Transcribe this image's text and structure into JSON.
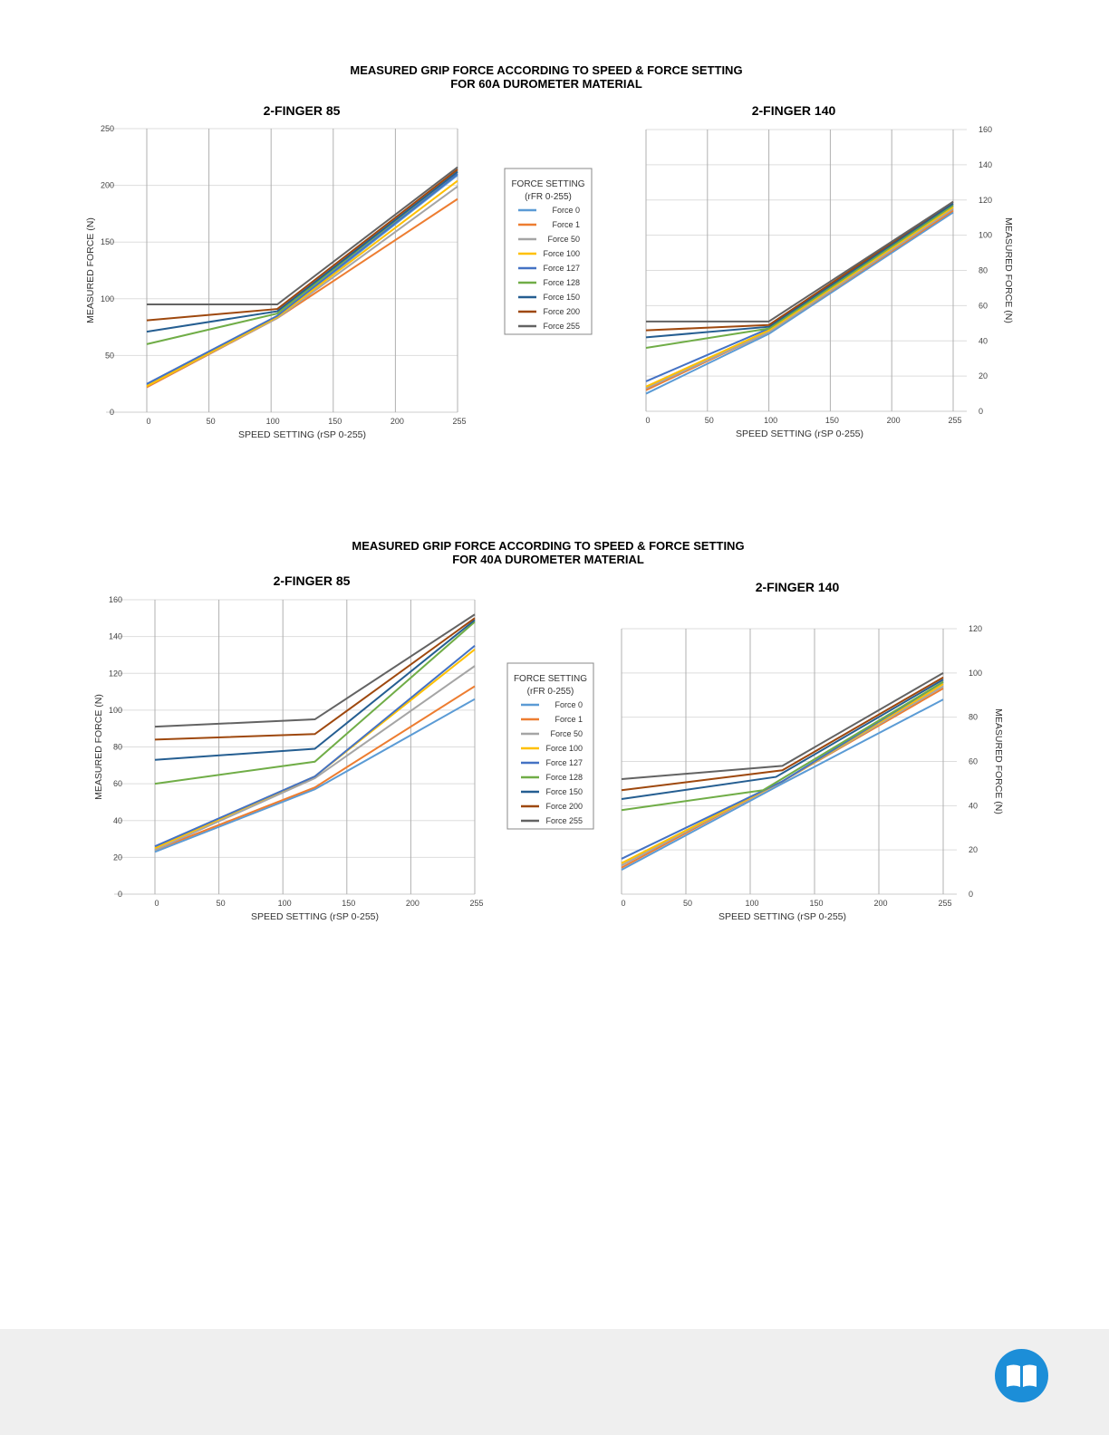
{
  "series_colors": {
    "Force 0": "#5b9bd5",
    "Force 1": "#ed7d31",
    "Force 50": "#a5a5a5",
    "Force 100": "#ffc000",
    "Force 127": "#4472c4",
    "Force 128": "#70ad47",
    "Force 150": "#255e91",
    "Force 200": "#9e480e",
    "Force 255": "#636363"
  },
  "sections": [
    {
      "title_line1": "MEASURED GRIP FORCE ACCORDING TO SPEED & FORCE SETTING",
      "title_line2": "FOR 60A DUROMETER MATERIAL"
    },
    {
      "title_line1": "MEASURED GRIP FORCE ACCORDING TO SPEED & FORCE SETTING",
      "title_line2": "FOR 40A DUROMETER MATERIAL"
    }
  ],
  "footer": {
    "icon": "book-icon"
  },
  "chart_data": [
    {
      "type": "line",
      "title": "2-FINGER 85",
      "xlabel": "SPEED SETTING (rSP 0-255)",
      "ylabel": "MEASURED FORCE (N)",
      "x_ticks": [
        0,
        50,
        100,
        150,
        200,
        255
      ],
      "y_ticks": [
        0,
        50,
        100,
        150,
        200,
        250
      ],
      "ylim": [
        0,
        250
      ],
      "grid": true,
      "legend": {
        "title_line1": "FORCE SETTING",
        "title_line2": "(rFR 0-255)",
        "placement": "right"
      },
      "series": [
        {
          "name": "Force 0",
          "points": [
            [
              0,
              24
            ],
            [
              105,
              84
            ],
            [
              255,
              209
            ]
          ]
        },
        {
          "name": "Force 1",
          "points": [
            [
              0,
              22
            ],
            [
              105,
              83
            ],
            [
              255,
              188
            ]
          ]
        },
        {
          "name": "Force 50",
          "points": [
            [
              0,
              23
            ],
            [
              105,
              83
            ],
            [
              255,
              199
            ]
          ]
        },
        {
          "name": "Force 100",
          "points": [
            [
              0,
              23
            ],
            [
              105,
              84
            ],
            [
              255,
              204
            ]
          ]
        },
        {
          "name": "Force 127",
          "points": [
            [
              0,
              25
            ],
            [
              105,
              85
            ],
            [
              255,
              210
            ]
          ]
        },
        {
          "name": "Force 128",
          "points": [
            [
              0,
              60
            ],
            [
              105,
              87
            ],
            [
              255,
              212
            ]
          ]
        },
        {
          "name": "Force 150",
          "points": [
            [
              0,
              71
            ],
            [
              105,
              89
            ],
            [
              255,
              212
            ]
          ]
        },
        {
          "name": "Force 200",
          "points": [
            [
              0,
              81
            ],
            [
              105,
              91
            ],
            [
              255,
              214
            ]
          ]
        },
        {
          "name": "Force 255",
          "points": [
            [
              0,
              95
            ],
            [
              105,
              95
            ],
            [
              255,
              216
            ]
          ]
        }
      ]
    },
    {
      "type": "line",
      "title": "2-FINGER 140",
      "xlabel": "SPEED SETTING (rSP 0-255)",
      "ylabel": "MEASURED FORCE (N)",
      "x_ticks": [
        0,
        50,
        100,
        150,
        200,
        255
      ],
      "y_ticks": [
        0,
        20,
        40,
        60,
        80,
        100,
        120,
        140,
        160
      ],
      "ylim": [
        0,
        160
      ],
      "grid": true,
      "series": [
        {
          "name": "Force 0",
          "points": [
            [
              0,
              10
            ],
            [
              100,
              44
            ],
            [
              255,
              113
            ]
          ]
        },
        {
          "name": "Force 1",
          "points": [
            [
              0,
              12
            ],
            [
              100,
              45
            ],
            [
              255,
              114
            ]
          ]
        },
        {
          "name": "Force 50",
          "points": [
            [
              0,
              13
            ],
            [
              100,
              45
            ],
            [
              255,
              115
            ]
          ]
        },
        {
          "name": "Force 100",
          "points": [
            [
              0,
              14
            ],
            [
              100,
              46
            ],
            [
              255,
              116
            ]
          ]
        },
        {
          "name": "Force 127",
          "points": [
            [
              0,
              17
            ],
            [
              100,
              47
            ],
            [
              255,
              117
            ]
          ]
        },
        {
          "name": "Force 128",
          "points": [
            [
              0,
              36
            ],
            [
              100,
              47
            ],
            [
              255,
              117
            ]
          ]
        },
        {
          "name": "Force 150",
          "points": [
            [
              0,
              42
            ],
            [
              100,
              48
            ],
            [
              255,
              118
            ]
          ]
        },
        {
          "name": "Force 200",
          "points": [
            [
              0,
              46
            ],
            [
              100,
              49
            ],
            [
              255,
              119
            ]
          ]
        },
        {
          "name": "Force 255",
          "points": [
            [
              0,
              51
            ],
            [
              100,
              51
            ],
            [
              255,
              119
            ]
          ]
        }
      ]
    },
    {
      "type": "line",
      "title": "2-FINGER 85",
      "xlabel": "SPEED SETTING (rSP 0-255)",
      "ylabel": "MEASURED FORCE (N)",
      "x_ticks": [
        0,
        50,
        100,
        150,
        200,
        255
      ],
      "y_ticks": [
        0,
        20,
        40,
        60,
        80,
        100,
        120,
        140,
        160
      ],
      "ylim": [
        0,
        160
      ],
      "grid": true,
      "legend": {
        "title_line1": "FORCE SETTING",
        "title_line2": "(rFR 0-255)",
        "placement": "right"
      },
      "series": [
        {
          "name": "Force 0",
          "points": [
            [
              0,
              23
            ],
            [
              125,
              57
            ],
            [
              255,
              106
            ]
          ]
        },
        {
          "name": "Force 1",
          "points": [
            [
              0,
              24
            ],
            [
              125,
              58
            ],
            [
              255,
              113
            ]
          ]
        },
        {
          "name": "Force 50",
          "points": [
            [
              0,
              24
            ],
            [
              125,
              63
            ],
            [
              255,
              124
            ]
          ]
        },
        {
          "name": "Force 100",
          "points": [
            [
              0,
              25
            ],
            [
              125,
              64
            ],
            [
              255,
              133
            ]
          ]
        },
        {
          "name": "Force 127",
          "points": [
            [
              0,
              26
            ],
            [
              125,
              64
            ],
            [
              255,
              135
            ]
          ]
        },
        {
          "name": "Force 128",
          "points": [
            [
              0,
              60
            ],
            [
              125,
              72
            ],
            [
              255,
              148
            ]
          ]
        },
        {
          "name": "Force 150",
          "points": [
            [
              0,
              73
            ],
            [
              125,
              79
            ],
            [
              255,
              149
            ]
          ]
        },
        {
          "name": "Force 200",
          "points": [
            [
              0,
              84
            ],
            [
              125,
              87
            ],
            [
              255,
              150
            ]
          ]
        },
        {
          "name": "Force 255",
          "points": [
            [
              0,
              91
            ],
            [
              125,
              95
            ],
            [
              255,
              152
            ]
          ]
        }
      ]
    },
    {
      "type": "line",
      "title": "2-FINGER 140",
      "xlabel": "SPEED SETTING (rSP 0-255)",
      "ylabel": "MEASURED FORCE (N)",
      "x_ticks": [
        0,
        50,
        100,
        150,
        200,
        255
      ],
      "y_ticks": [
        0,
        20,
        40,
        60,
        80,
        100,
        120
      ],
      "ylim": [
        0,
        120
      ],
      "grid": true,
      "series": [
        {
          "name": "Force 0",
          "points": [
            [
              0,
              11
            ],
            [
              125,
              50
            ],
            [
              255,
              88
            ]
          ]
        },
        {
          "name": "Force 1",
          "points": [
            [
              0,
              12
            ],
            [
              125,
              51
            ],
            [
              255,
              93
            ]
          ]
        },
        {
          "name": "Force 50",
          "points": [
            [
              0,
              13
            ],
            [
              125,
              51
            ],
            [
              255,
              94
            ]
          ]
        },
        {
          "name": "Force 100",
          "points": [
            [
              0,
              14
            ],
            [
              125,
              51
            ],
            [
              255,
              95
            ]
          ]
        },
        {
          "name": "Force 127",
          "points": [
            [
              0,
              16
            ],
            [
              125,
              51
            ],
            [
              255,
              96
            ]
          ]
        },
        {
          "name": "Force 128",
          "points": [
            [
              0,
              38
            ],
            [
              110,
              47
            ],
            [
              255,
              96
            ]
          ]
        },
        {
          "name": "Force 150",
          "points": [
            [
              0,
              43
            ],
            [
              120,
              53
            ],
            [
              255,
              97
            ]
          ]
        },
        {
          "name": "Force 200",
          "points": [
            [
              0,
              47
            ],
            [
              125,
              56
            ],
            [
              255,
              98
            ]
          ]
        },
        {
          "name": "Force 255",
          "points": [
            [
              0,
              52
            ],
            [
              125,
              58
            ],
            [
              255,
              100
            ]
          ]
        }
      ]
    }
  ]
}
